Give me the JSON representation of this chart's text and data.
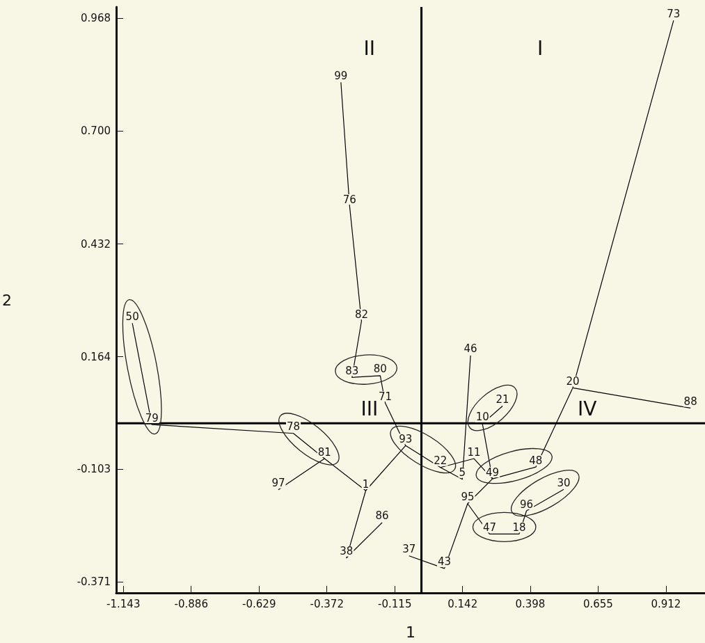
{
  "chart_data": {
    "type": "line",
    "xlabel": "1",
    "ylabel": "2",
    "xlim": [
      -1.17,
      1.06
    ],
    "ylim": [
      -0.397,
      0.995
    ],
    "xticks": [
      -1.143,
      -0.886,
      -0.629,
      -0.372,
      -0.115,
      0.142,
      0.398,
      0.655,
      0.912
    ],
    "yticks": [
      {
        "value": -0.371,
        "label": "-0.371"
      },
      {
        "value": -0.103,
        "label": "-0.103"
      },
      {
        "value": 0.164,
        "label": "0.164"
      },
      {
        "value": 0.432,
        "label": "0.432"
      },
      {
        "value": 0.7,
        "label": "0.700"
      },
      {
        "value": 0.968,
        "label": "0.968"
      }
    ],
    "grid": false,
    "ref_lines": [
      {
        "axis": "x",
        "value": -0.014,
        "color": "#000000"
      },
      {
        "axis": "y",
        "value": 0.006,
        "color": "#000000"
      }
    ],
    "annotations": [
      "I",
      "II",
      "III",
      "IV",
      {
        "text": "73",
        "x": 0.941,
        "y": 0.963
      },
      {
        "text": "99",
        "x": -0.319,
        "y": 0.816
      },
      {
        "text": "76",
        "x": -0.286,
        "y": 0.522
      },
      {
        "text": "82",
        "x": -0.241,
        "y": 0.249
      },
      {
        "text": "50",
        "x": -1.109,
        "y": 0.244
      },
      {
        "text": "83",
        "x": -0.277,
        "y": 0.115
      },
      {
        "text": "80",
        "x": -0.17,
        "y": 0.119
      },
      {
        "text": "71",
        "x": -0.151,
        "y": 0.054
      },
      {
        "text": "79",
        "x": -1.035,
        "y": 0.003
      },
      {
        "text": "78",
        "x": -0.499,
        "y": -0.018
      },
      {
        "text": "81",
        "x": -0.381,
        "y": -0.078
      },
      {
        "text": "97",
        "x": -0.556,
        "y": -0.152
      },
      {
        "text": "1",
        "x": -0.225,
        "y": -0.154
      },
      {
        "text": "86",
        "x": -0.163,
        "y": -0.23
      },
      {
        "text": "38",
        "x": -0.298,
        "y": -0.314
      },
      {
        "text": "93",
        "x": -0.074,
        "y": -0.047
      },
      {
        "text": "37",
        "x": -0.061,
        "y": -0.309
      },
      {
        "text": "22",
        "x": 0.058,
        "y": -0.099
      },
      {
        "text": "11",
        "x": 0.185,
        "y": -0.078
      },
      {
        "text": "5",
        "x": 0.141,
        "y": -0.127
      },
      {
        "text": "46",
        "x": 0.172,
        "y": 0.167
      },
      {
        "text": "43",
        "x": 0.073,
        "y": -0.339
      },
      {
        "text": "95",
        "x": 0.161,
        "y": -0.185
      },
      {
        "text": "21",
        "x": 0.293,
        "y": 0.047
      },
      {
        "text": "10",
        "x": 0.217,
        "y": 0.005
      },
      {
        "text": "49",
        "x": 0.255,
        "y": -0.126
      },
      {
        "text": "48",
        "x": 0.419,
        "y": -0.098
      },
      {
        "text": "20",
        "x": 0.559,
        "y": 0.09
      },
      {
        "text": "88",
        "x": 1.005,
        "y": 0.042
      },
      {
        "text": "30",
        "x": 0.525,
        "y": -0.151
      },
      {
        "text": "96",
        "x": 0.384,
        "y": -0.202
      },
      {
        "text": "47",
        "x": 0.244,
        "y": -0.257
      },
      {
        "text": "18",
        "x": 0.356,
        "y": -0.257
      }
    ],
    "series": [
      {
        "color": "#000000",
        "x": [
          0.941,
          0.559,
          1.005,
          null,
          0.559,
          0.419,
          0.255,
          0.217,
          0.293,
          null,
          0.255,
          0.185,
          0.058,
          -0.074,
          -0.151,
          -0.17,
          -0.277,
          -0.241,
          -0.286,
          -0.319,
          null,
          0.255,
          0.161,
          0.244,
          0.356,
          0.384,
          0.525,
          null,
          0.161,
          0.073,
          -0.061,
          null,
          0.058,
          0.141,
          0.172,
          null,
          -0.074,
          -0.225,
          -0.381,
          -0.499,
          -1.035,
          -1.109,
          null,
          -0.381,
          -0.556,
          null,
          -0.225,
          -0.298,
          -0.163
        ],
        "values": [
          0.963,
          0.09,
          0.042,
          null,
          0.09,
          -0.098,
          -0.126,
          0.005,
          0.047,
          null,
          -0.126,
          -0.078,
          -0.099,
          -0.047,
          0.054,
          0.119,
          0.115,
          0.249,
          0.522,
          0.816,
          null,
          -0.126,
          -0.185,
          -0.257,
          -0.257,
          -0.202,
          -0.151,
          null,
          -0.185,
          -0.339,
          -0.309,
          null,
          -0.099,
          -0.127,
          0.167,
          null,
          -0.047,
          -0.154,
          -0.078,
          -0.018,
          0.003,
          0.244,
          null,
          -0.078,
          -0.152,
          null,
          -0.154,
          -0.314,
          -0.23
        ]
      }
    ]
  }
}
